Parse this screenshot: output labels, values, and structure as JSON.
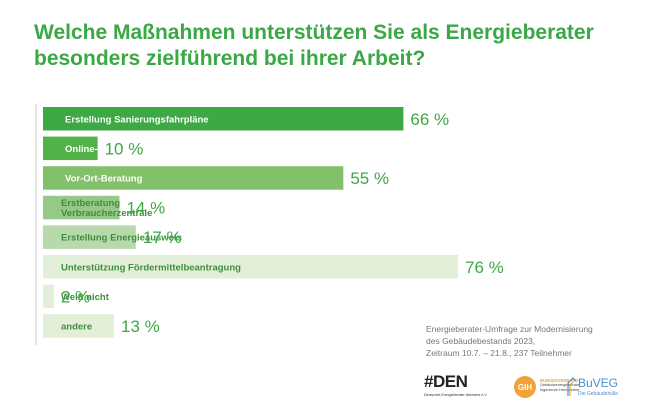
{
  "chart_data": {
    "type": "bar",
    "orientation": "horizontal",
    "title": "Welche Maßnahmen unterstützen Sie als Energieberater besonders zielführend bei ihrer Arbeit?",
    "categories": [
      "Erstellung Sanierungsfahrpläne",
      "Online-Beratung",
      "Vor-Ort-Beratung",
      "Erstberatung Verbraucherzentrale",
      "Erstellung Energieausweis",
      "Unterstützung Fördermittelbeantragung",
      "Weiß nicht",
      "andere"
    ],
    "category_lines": [
      [
        "Erstellung Sanierungsfahrpläne"
      ],
      [
        "Online-Beratung"
      ],
      [
        "Vor-Ort-Beratung"
      ],
      [
        "Erstberatung",
        "Verbraucherzentrale"
      ],
      [
        "Erstellung Energieausweis"
      ],
      [
        "Unterstützung Fördermittelbeantragung"
      ],
      [
        "Weiß nicht"
      ],
      [
        "andere"
      ]
    ],
    "values": [
      66,
      10,
      55,
      14,
      17,
      76,
      2,
      13
    ],
    "value_labels": [
      "66 %",
      "10 %",
      "55 %",
      "14 %",
      "17 %",
      "76 %",
      "2 %",
      "13 %"
    ],
    "unit": "%",
    "xlim": [
      0,
      76
    ],
    "grid": false,
    "legend": "none",
    "colors": {
      "bars": [
        "#3da944",
        "#52b24a",
        "#83c06a",
        "#95c889",
        "#b7d9ab",
        "#e4efd9",
        "#e4efd9",
        "#e4efd9"
      ],
      "label_text": [
        "#ffffff",
        "#ffffff",
        "#ffffff",
        "#3f8f3a",
        "#3f8f3a",
        "#3f8f3a",
        "#3f8f3a",
        "#3f8f3a"
      ],
      "value_text": "#3da944",
      "axis": "#cccccc",
      "title": "#39a845"
    }
  },
  "caption": {
    "lines": [
      "Energieberater-Umfrage zur Modernisierung",
      "des Gebäudebestands 2023,",
      "Zeitraum 10.7. – 21.8., 237 Teilnehmer"
    ]
  },
  "logos": {
    "den": {
      "mark": "DEN",
      "sub": "Deutsches Energieberater-Netzwerk e.V."
    },
    "gih": {
      "mark": "GIH",
      "name": "BUNDESVERBAND",
      "sub": "Gebäudeenergieberater Ingenieure Handwerker"
    },
    "buveg": {
      "mark": "BuVEG",
      "sub": "Die Gebäudehülle"
    }
  }
}
